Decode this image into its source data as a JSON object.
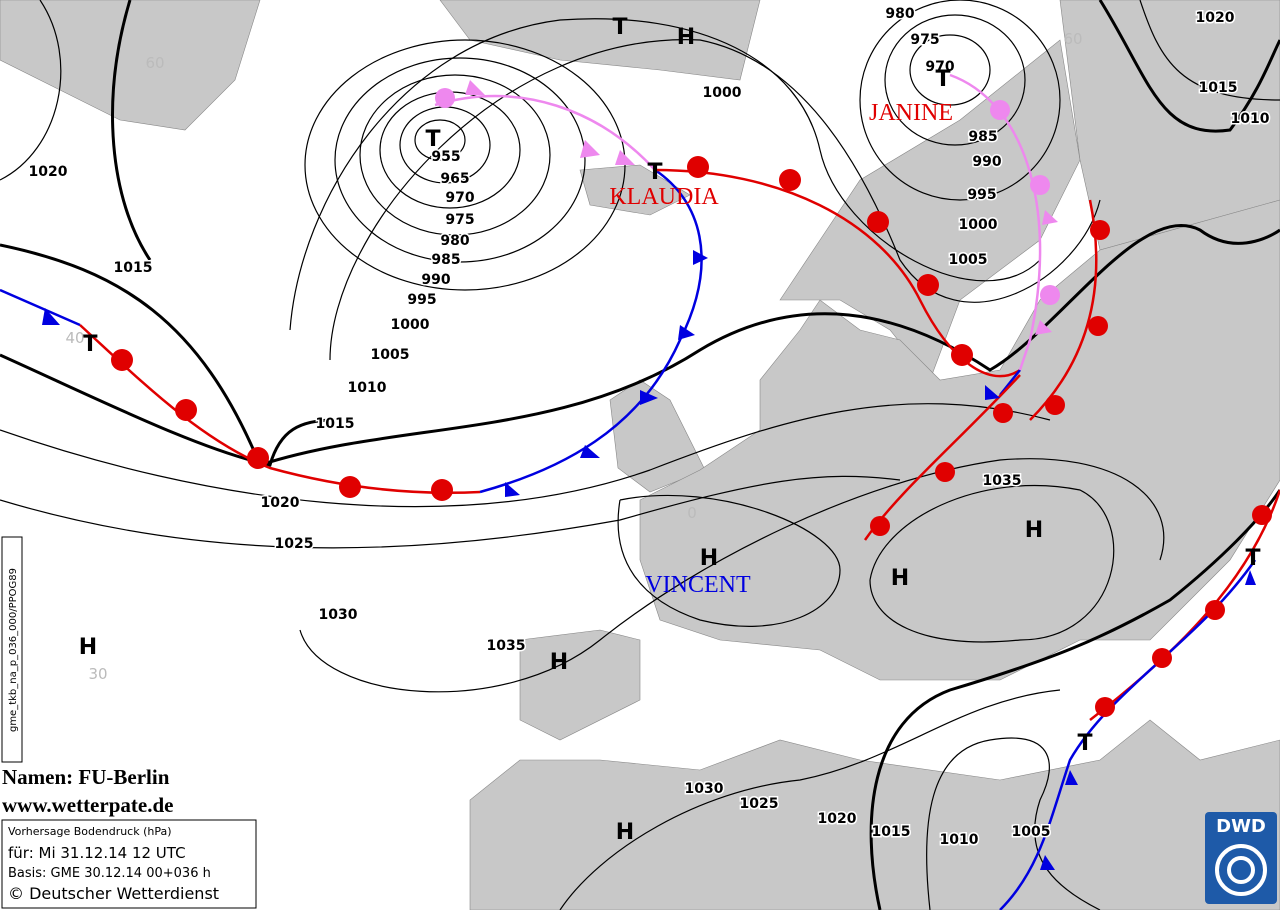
{
  "map": {
    "isobar_labels": [
      "1020",
      "1015",
      "1010",
      "980",
      "975",
      "970",
      "985",
      "990",
      "995",
      "1000",
      "1005",
      "1000",
      "1020",
      "1015",
      "955",
      "965",
      "970",
      "975",
      "980",
      "985",
      "990",
      "995",
      "1000",
      "1005",
      "1010",
      "1015",
      "1020",
      "1025",
      "1030",
      "1035",
      "1035",
      "1030",
      "1025",
      "1020",
      "1015",
      "1010",
      "1005"
    ],
    "pressure_centers": [
      "T",
      "H",
      "T",
      "T",
      "T",
      "T",
      "H",
      "H",
      "H",
      "H",
      "H",
      "H",
      "T",
      "T"
    ],
    "system_names": [
      "JANINE",
      "KLAUDIA",
      "VINCENT"
    ],
    "grid_labels": [
      "60",
      "40",
      "30",
      "0",
      "60"
    ]
  },
  "credits": {
    "names": "Namen: FU-Berlin",
    "website": "www.wetterpate.de",
    "product_code": "gme_tkb_na_p_036_000/PPOG89",
    "logo": "DWD"
  },
  "info_box": {
    "lines": [
      "Vorhersage Bodendruck (hPa)",
      "für:  Mi 31.12.14  12 UTC",
      "Basis: GME  30.12.14 00+036 h",
      "© Deutscher Wetterdienst"
    ]
  }
}
